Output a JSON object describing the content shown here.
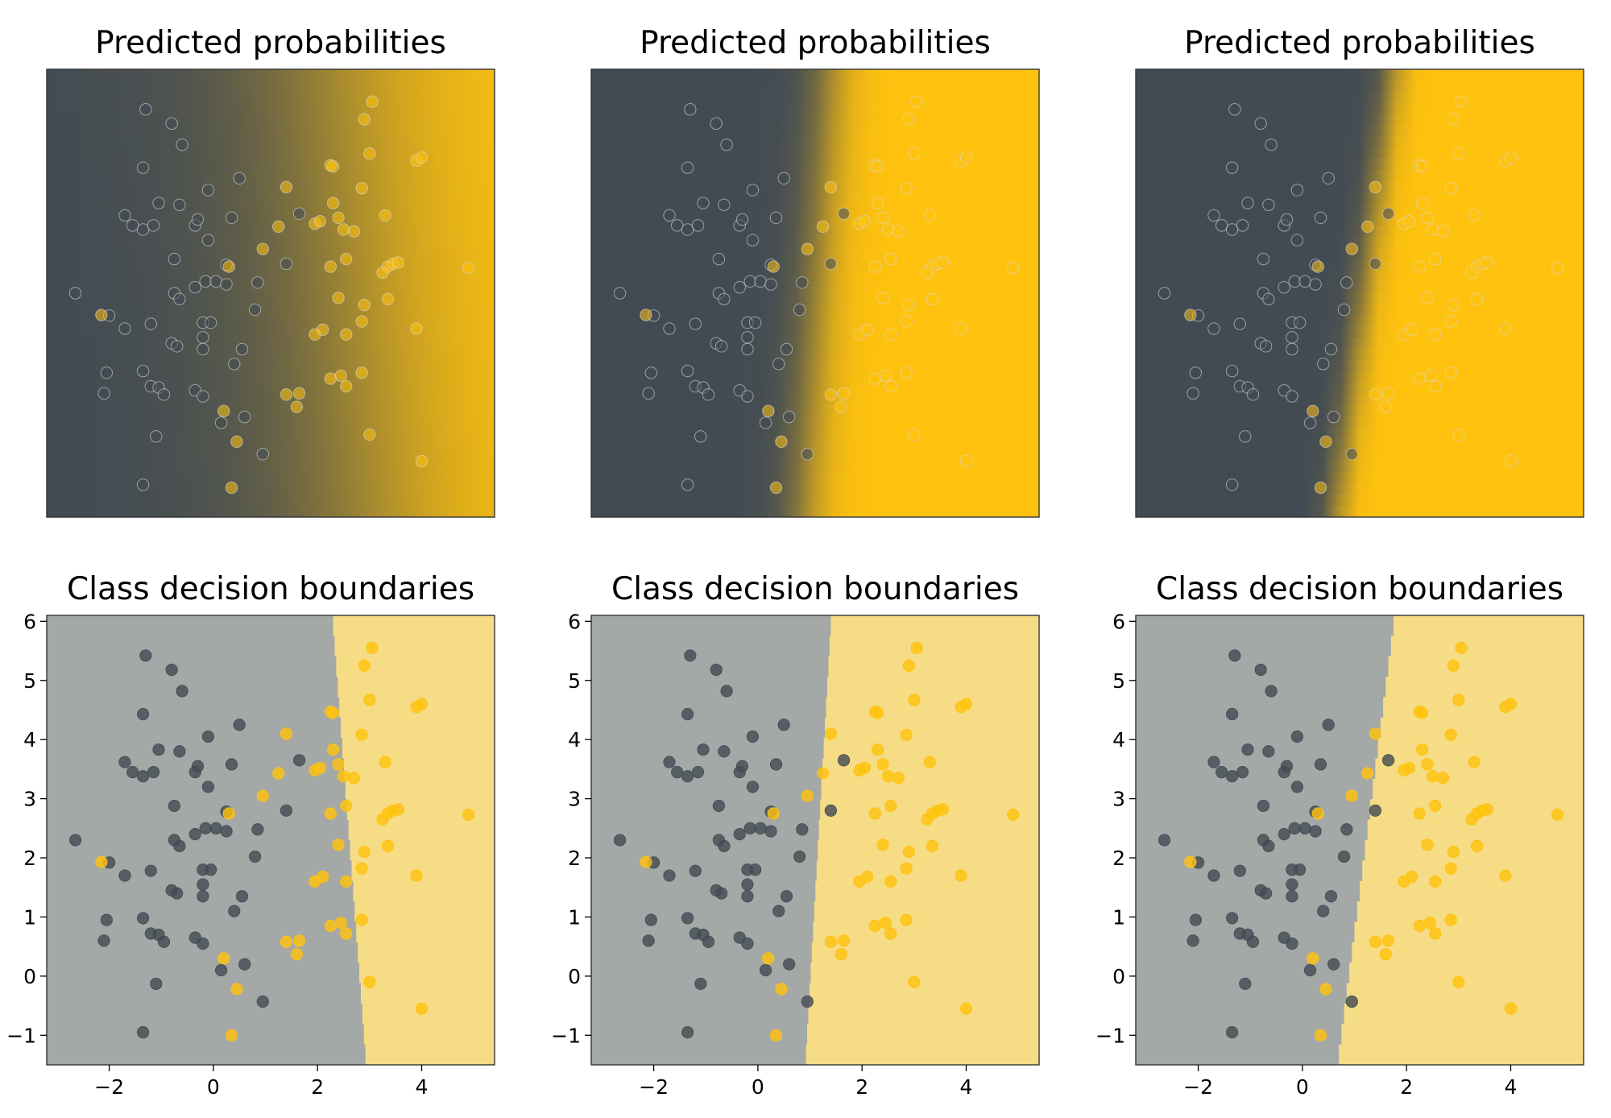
{
  "colors": {
    "class0": "#424b54",
    "class1": "#ffc20e",
    "class0_region": "#a4a8a6",
    "class1_region": "#f6dc84",
    "frame": "#333333"
  },
  "chart_data": [
    {
      "type": "scatter",
      "panel": "probability",
      "title": "Predicted probabilities",
      "xlim": [
        -3.2,
        5.4
      ],
      "ylim": [
        -1.5,
        6.1
      ],
      "boundary": {
        "x_at_ymin": 2.95,
        "x_at_ymax": 2.25,
        "softness": 2.6
      },
      "show_ticks": false
    },
    {
      "type": "scatter",
      "panel": "probability",
      "title": "Predicted probabilities",
      "xlim": [
        -3.2,
        5.4
      ],
      "ylim": [
        -1.5,
        6.1
      ],
      "boundary": {
        "x_at_ymin": 0.9,
        "x_at_ymax": 1.4,
        "softness": 0.55
      },
      "show_ticks": false
    },
    {
      "type": "scatter",
      "panel": "probability",
      "title": "Predicted probabilities",
      "xlim": [
        -3.2,
        5.4
      ],
      "ylim": [
        -1.5,
        6.1
      ],
      "boundary": {
        "x_at_ymin": 0.65,
        "x_at_ymax": 1.75,
        "softness": 0.3
      },
      "show_ticks": false
    },
    {
      "type": "scatter",
      "panel": "decision",
      "title": "Class decision boundaries",
      "xlim": [
        -3.2,
        5.4
      ],
      "ylim": [
        -1.5,
        6.1
      ],
      "boundary": {
        "x_at_ymin": 2.95,
        "x_at_ymax": 2.3
      },
      "xticks": [
        -2,
        0,
        2,
        4
      ],
      "xtick_labels": [
        "−2",
        "0",
        "2",
        "4"
      ],
      "yticks": [
        -1,
        0,
        1,
        2,
        3,
        4,
        5,
        6
      ],
      "ytick_labels": [
        "−1",
        "0",
        "1",
        "2",
        "3",
        "4",
        "5",
        "6"
      ],
      "show_ticks": true
    },
    {
      "type": "scatter",
      "panel": "decision",
      "title": "Class decision boundaries",
      "xlim": [
        -3.2,
        5.4
      ],
      "ylim": [
        -1.5,
        6.1
      ],
      "boundary": {
        "x_at_ymin": 0.9,
        "x_at_ymax": 1.4
      },
      "xticks": [
        -2,
        0,
        2,
        4
      ],
      "xtick_labels": [
        "−2",
        "0",
        "2",
        "4"
      ],
      "yticks": [
        -1,
        0,
        1,
        2,
        3,
        4,
        5,
        6
      ],
      "ytick_labels": [
        "−1",
        "0",
        "1",
        "2",
        "3",
        "4",
        "5",
        "6"
      ],
      "show_ticks": true
    },
    {
      "type": "scatter",
      "panel": "decision",
      "title": "Class decision boundaries",
      "xlim": [
        -3.2,
        5.4
      ],
      "ylim": [
        -1.5,
        6.1
      ],
      "boundary": {
        "x_at_ymin": 0.65,
        "x_at_ymax": 1.75
      },
      "xticks": [
        -2,
        0,
        2,
        4
      ],
      "xtick_labels": [
        "−2",
        "0",
        "2",
        "4"
      ],
      "yticks": [
        -1,
        0,
        1,
        2,
        3,
        4,
        5,
        6
      ],
      "ytick_labels": [
        "−1",
        "0",
        "1",
        "2",
        "3",
        "4",
        "5",
        "6"
      ],
      "show_ticks": true
    }
  ],
  "points": {
    "class0": [
      [
        -1.3,
        5.42
      ],
      [
        -0.8,
        5.18
      ],
      [
        -0.6,
        4.82
      ],
      [
        -1.35,
        4.43
      ],
      [
        -1.05,
        3.83
      ],
      [
        -0.65,
        3.8
      ],
      [
        -0.1,
        4.05
      ],
      [
        0.5,
        4.25
      ],
      [
        -1.7,
        3.62
      ],
      [
        -1.55,
        3.45
      ],
      [
        -1.35,
        3.38
      ],
      [
        -1.15,
        3.45
      ],
      [
        -0.35,
        3.45
      ],
      [
        -0.3,
        3.55
      ],
      [
        0.35,
        3.58
      ],
      [
        -0.75,
        2.88
      ],
      [
        -0.1,
        3.2
      ],
      [
        0.25,
        2.78
      ],
      [
        -0.15,
        2.5
      ],
      [
        0.05,
        2.5
      ],
      [
        0.25,
        2.45
      ],
      [
        0.85,
        2.48
      ],
      [
        0.8,
        2.02
      ],
      [
        -0.75,
        2.3
      ],
      [
        -0.35,
        2.4
      ],
      [
        -2.0,
        1.92
      ],
      [
        -1.7,
        1.7
      ],
      [
        -2.65,
        2.3
      ],
      [
        -1.2,
        1.78
      ],
      [
        -0.2,
        1.8
      ],
      [
        -0.05,
        1.8
      ],
      [
        -0.2,
        1.55
      ],
      [
        -0.8,
        1.45
      ],
      [
        -0.7,
        1.4
      ],
      [
        -2.05,
        0.95
      ],
      [
        -2.1,
        0.6
      ],
      [
        -1.35,
        0.98
      ],
      [
        -1.2,
        0.72
      ],
      [
        -1.05,
        0.7
      ],
      [
        -0.95,
        0.58
      ],
      [
        -0.35,
        0.65
      ],
      [
        -0.2,
        0.55
      ],
      [
        -0.2,
        1.35
      ],
      [
        0.4,
        1.1
      ],
      [
        0.55,
        1.35
      ],
      [
        0.15,
        0.1
      ],
      [
        0.6,
        0.2
      ],
      [
        -1.1,
        -0.13
      ],
      [
        0.95,
        -0.43
      ],
      [
        -1.35,
        -0.95
      ],
      [
        -0.65,
        2.2
      ],
      [
        1.4,
        2.8
      ],
      [
        1.65,
        3.65
      ]
    ],
    "class1": [
      [
        3.05,
        5.55
      ],
      [
        2.9,
        5.25
      ],
      [
        3.0,
        4.67
      ],
      [
        2.25,
        4.47
      ],
      [
        2.3,
        4.45
      ],
      [
        1.4,
        4.1
      ],
      [
        2.85,
        4.08
      ],
      [
        3.9,
        4.55
      ],
      [
        4.0,
        4.6
      ],
      [
        2.3,
        3.83
      ],
      [
        1.25,
        3.43
      ],
      [
        1.95,
        3.48
      ],
      [
        2.05,
        3.52
      ],
      [
        2.4,
        3.58
      ],
      [
        2.5,
        3.38
      ],
      [
        2.7,
        3.35
      ],
      [
        3.3,
        3.62
      ],
      [
        2.55,
        2.88
      ],
      [
        2.25,
        2.75
      ],
      [
        3.35,
        2.75
      ],
      [
        3.45,
        2.8
      ],
      [
        3.55,
        2.82
      ],
      [
        3.25,
        2.65
      ],
      [
        4.9,
        2.73
      ],
      [
        0.95,
        3.05
      ],
      [
        2.4,
        2.22
      ],
      [
        2.9,
        2.1
      ],
      [
        3.35,
        2.2
      ],
      [
        2.85,
        1.82
      ],
      [
        1.95,
        1.6
      ],
      [
        2.1,
        1.68
      ],
      [
        2.55,
        1.6
      ],
      [
        3.9,
        1.7
      ],
      [
        -2.15,
        1.93
      ],
      [
        0.3,
        2.75
      ],
      [
        2.25,
        0.85
      ],
      [
        2.45,
        0.9
      ],
      [
        2.85,
        0.95
      ],
      [
        2.55,
        0.72
      ],
      [
        1.4,
        0.58
      ],
      [
        1.65,
        0.6
      ],
      [
        1.6,
        0.37
      ],
      [
        0.2,
        0.3
      ],
      [
        0.45,
        -0.22
      ],
      [
        3.0,
        -0.1
      ],
      [
        4.0,
        -0.55
      ],
      [
        0.35,
        -1.0
      ]
    ]
  }
}
